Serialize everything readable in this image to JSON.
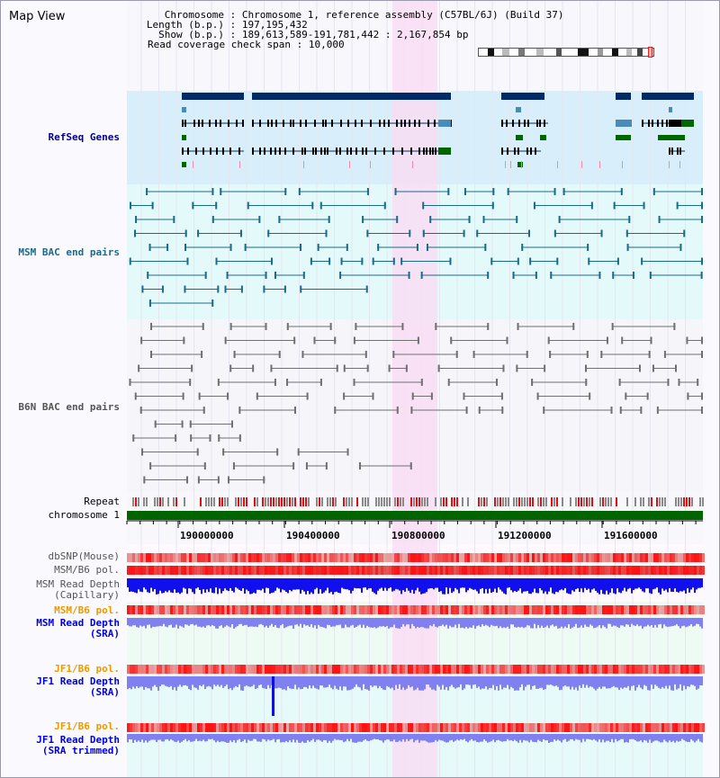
{
  "app": {
    "title": "Map View"
  },
  "info": {
    "rows": [
      {
        "label": "Chromosome",
        "value": "Chromosome 1, reference assembly (C57BL/6J) (Build 37)"
      },
      {
        "label": "Length (b.p.)",
        "value": "197,195,432"
      },
      {
        "label": "Show (b.p.)",
        "value": "189,613,589-191,781,442 : 2,167,854 bp"
      },
      {
        "label": "Read coverage check span",
        "value": "10,000"
      }
    ]
  },
  "tracks": {
    "refseq": {
      "label": "RefSeq Genes"
    },
    "msm_bac": {
      "label": "MSM BAC end pairs"
    },
    "b6n_bac": {
      "label": "B6N BAC end pairs"
    },
    "repeat": {
      "label": "Repeat"
    },
    "chromosome": {
      "label": "chromosome 1"
    },
    "dbsnp": {
      "label": "dbSNP(Mouse)"
    },
    "msm_b6_pol_1": {
      "label": "MSM/B6 pol."
    },
    "msm_depth_cap": {
      "label1": "MSM Read Depth",
      "label2": "(Capillary)"
    },
    "msm_b6_pol_2": {
      "label": "MSM/B6 pol."
    },
    "msm_depth_sra": {
      "label1": "MSM Read Depth",
      "label2": "(SRA)"
    },
    "jf1_b6_pol_1": {
      "label": "JF1/B6 pol."
    },
    "jf1_depth_sra": {
      "label1": "JF1 Read Depth",
      "label2": "(SRA)"
    },
    "jf1_b6_pol_2": {
      "label": "JF1/B6 pol."
    },
    "jf1_depth_trim": {
      "label1": "JF1 Read Depth",
      "label2": "(SRA trimmed)"
    }
  },
  "axis": {
    "ticks": [
      "190000000",
      "190400000",
      "190800000",
      "191200000",
      "191600000"
    ]
  },
  "colors": {
    "refseq_bg": "#d8eefa",
    "bac_bg": "#e4fafa",
    "highlight": "#fadcf4",
    "gene_dark": "#002a66",
    "gene_mid": "#4a8cb8",
    "gene_green": "#006600",
    "msm_bac": "#1a6a8a",
    "b6n_bac": "#707070",
    "chromosome_bar": "#006400",
    "depth_capillary": "#1010ee",
    "depth_sra": "#8080f0",
    "label_navy": "#00008b",
    "label_teal": "#1a6a8a",
    "label_grey": "#555555",
    "label_orange": "#ee9900",
    "label_blue": "#0000dd"
  }
}
